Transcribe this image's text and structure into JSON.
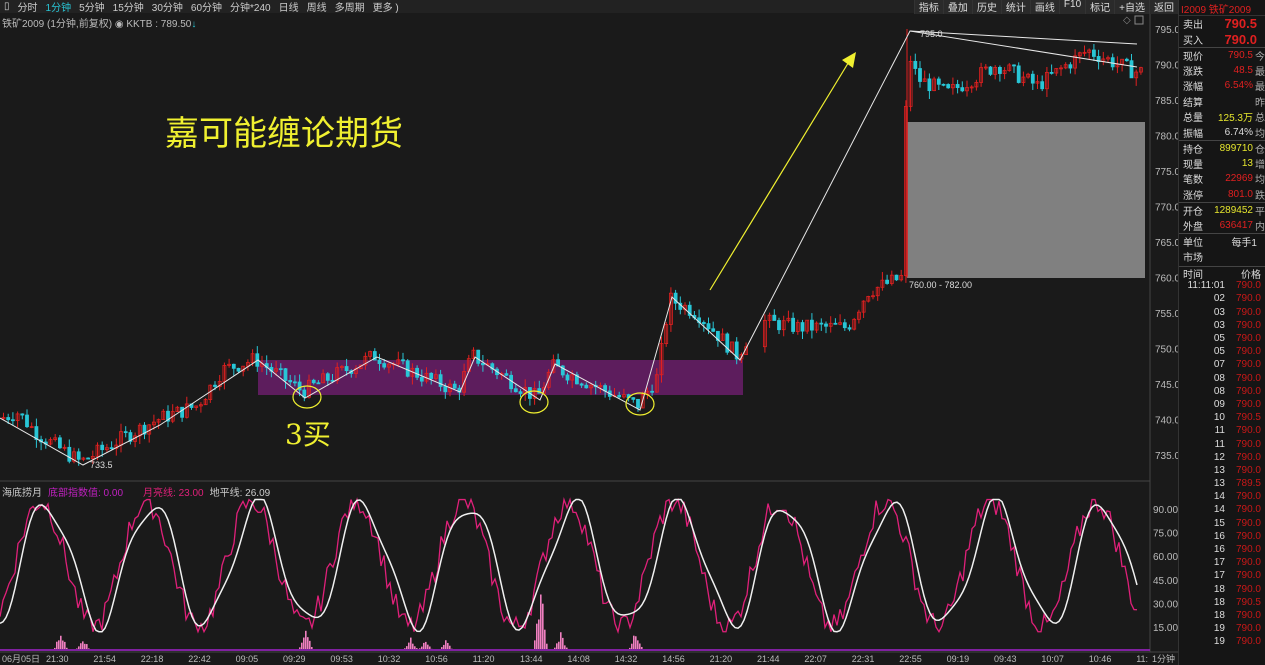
{
  "toolbar": {
    "periods": [
      "分时",
      "1分钟",
      "5分钟",
      "15分钟",
      "30分钟",
      "60分钟",
      "分钟*240",
      "日线",
      "周线",
      "多周期",
      "更多 )"
    ],
    "active": "1分钟",
    "tools": [
      "指标",
      "叠加",
      "历史",
      "统计",
      "画线",
      "F10",
      "标记",
      "+自选",
      "返回"
    ]
  },
  "chart": {
    "symbol_label": "铁矿2009 (1分钟,前复权)",
    "indicator": "KKTB : 789.50",
    "watermark": "嘉可能缠论期货",
    "buy_note": "3买",
    "low_label": "733.5",
    "high_label": "795.0",
    "box_label": "760.00 - 782.00",
    "price_ticks": [
      "795.0",
      "790.0",
      "785.0",
      "780.0",
      "775.0",
      "770.0",
      "765.0",
      "760.0",
      "755.0",
      "750.0",
      "745.0",
      "740.0",
      "735.0"
    ],
    "osc_ticks": [
      "90.00",
      "75.00",
      "60.00",
      "45.00",
      "30.00",
      "15.00"
    ],
    "time_ticks": [
      "06月05日",
      "21:30",
      "21:54",
      "22:18",
      "22:42",
      "09:05",
      "09:29",
      "09:53",
      "10:32",
      "10:56",
      "11:20",
      "13:44",
      "14:08",
      "14:32",
      "14:56",
      "21:20",
      "21:44",
      "22:07",
      "22:31",
      "22:55",
      "09:19",
      "09:43",
      "10:07",
      "10:46",
      "11:",
      "1分钟"
    ],
    "colors": {
      "up": "#e02020",
      "down": "#29c6d6",
      "zone": "#6a1e6a",
      "pink": "#e0207a",
      "yellow": "#f0f030"
    }
  },
  "oscillator": {
    "name": "海底捞月",
    "bottom": "底部指数值: 0.00",
    "moon": "月亮线: 23.00",
    "horizon": "地平线: 26.09"
  },
  "quote": {
    "title": "I2009 铁矿2009",
    "rows": [
      [
        {
          "k": "卖出",
          "v": "790.5",
          "c": "",
          "cls": "red"
        },
        {
          "k": "买入",
          "v": "790.0",
          "c": "",
          "cls": "red"
        }
      ],
      [
        {
          "k": "现价",
          "v": "790.5",
          "c": "今",
          "cls": "red"
        },
        {
          "k": "涨跌",
          "v": "48.5",
          "c": "最",
          "cls": "red"
        },
        {
          "k": "涨幅",
          "v": "6.54%",
          "c": "最",
          "cls": "red"
        },
        {
          "k": "结算",
          "v": "",
          "c": "昨",
          "cls": "wht"
        },
        {
          "k": "总量",
          "v": "125.3万",
          "c": "总",
          "cls": "yel"
        },
        {
          "k": "振幅",
          "v": "6.74%",
          "c": "均",
          "cls": "wht"
        }
      ],
      [
        {
          "k": "持仓",
          "v": "899710",
          "c": "仓",
          "cls": "yel"
        },
        {
          "k": "现量",
          "v": "13",
          "c": "增",
          "cls": "yel"
        },
        {
          "k": "笔数",
          "v": "22969",
          "c": "均",
          "cls": "red"
        },
        {
          "k": "涨停",
          "v": "801.0",
          "c": "跌",
          "cls": "red"
        }
      ],
      [
        {
          "k": "开仓",
          "v": "1289452",
          "c": "平",
          "cls": "yel"
        },
        {
          "k": "外盘",
          "v": "636417",
          "c": "内",
          "cls": "red"
        }
      ],
      [
        {
          "k": "单位",
          "v": "每手1",
          "c": "",
          "cls": "wht"
        },
        {
          "k": "市场",
          "v": "",
          "c": "",
          "cls": "wht"
        }
      ]
    ],
    "ticks_header": [
      "时间",
      "价格"
    ],
    "ticks": [
      [
        "11:11:01",
        "790.0"
      ],
      [
        "02",
        "790.0"
      ],
      [
        "03",
        "790.0"
      ],
      [
        "03",
        "790.0"
      ],
      [
        "05",
        "790.0"
      ],
      [
        "05",
        "790.0"
      ],
      [
        "07",
        "790.0"
      ],
      [
        "08",
        "790.0"
      ],
      [
        "08",
        "790.0"
      ],
      [
        "09",
        "790.0"
      ],
      [
        "10",
        "790.5"
      ],
      [
        "11",
        "790.0"
      ],
      [
        "11",
        "790.0"
      ],
      [
        "12",
        "790.0"
      ],
      [
        "13",
        "790.0"
      ],
      [
        "13",
        "789.5"
      ],
      [
        "14",
        "790.0"
      ],
      [
        "14",
        "790.0"
      ],
      [
        "15",
        "790.0"
      ],
      [
        "16",
        "790.0"
      ],
      [
        "16",
        "790.0"
      ],
      [
        "17",
        "790.0"
      ],
      [
        "17",
        "790.0"
      ],
      [
        "18",
        "790.0"
      ],
      [
        "18",
        "790.5"
      ],
      [
        "18",
        "790.0"
      ],
      [
        "19",
        "790.0"
      ],
      [
        "19",
        "790.0"
      ]
    ]
  }
}
